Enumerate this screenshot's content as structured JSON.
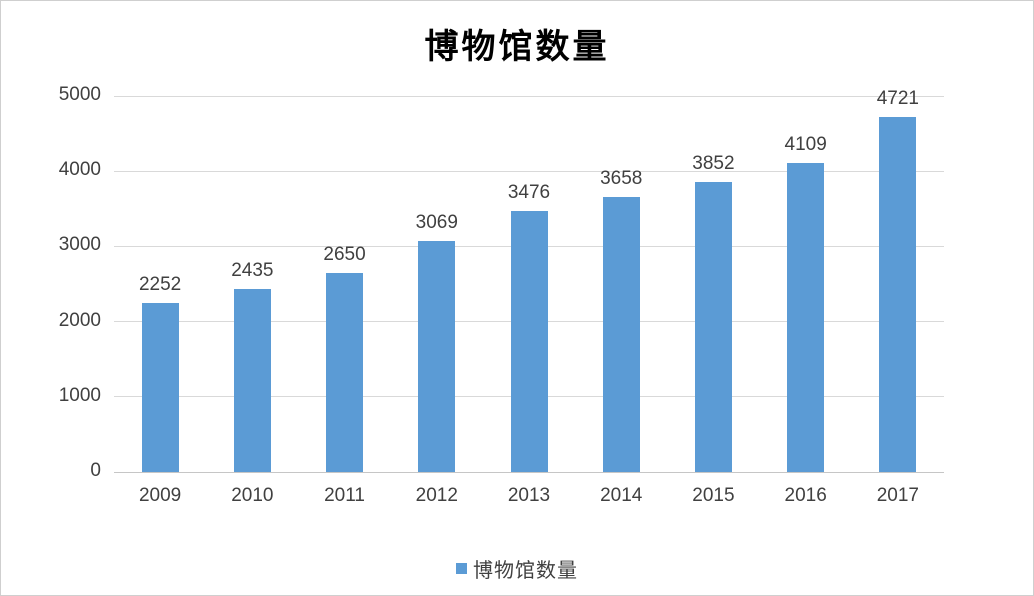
{
  "chart_data": {
    "type": "bar",
    "title": "博物馆数量",
    "categories": [
      "2009",
      "2010",
      "2011",
      "2012",
      "2013",
      "2014",
      "2015",
      "2016",
      "2017"
    ],
    "values": [
      2252,
      2435,
      2650,
      3069,
      3476,
      3658,
      3852,
      4109,
      4721
    ],
    "data_labels_shown": true,
    "xlabel": "",
    "ylabel": "",
    "ylim": [
      0,
      5000
    ],
    "ytick_step": 1000,
    "ytick_labels": [
      "0",
      "1000",
      "2000",
      "3000",
      "4000",
      "5000"
    ],
    "grid": true,
    "legend": {
      "position": "bottom",
      "label": "博物馆数量",
      "swatch_icon": "legend-square-swatch"
    },
    "colors": {
      "bar_fill": "#5B9BD5",
      "gridline": "#D9D9D9",
      "axis_baseline": "#C6C6C6",
      "tick_label": "#404040",
      "data_label": "#404040",
      "title": "#000000",
      "background": "#FFFFFF"
    }
  }
}
